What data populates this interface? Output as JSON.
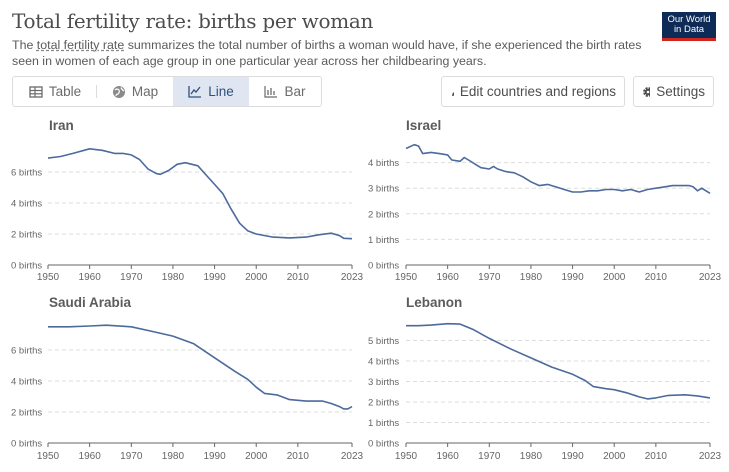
{
  "header": {
    "title": "Total fertility rate: births per woman",
    "subtitle_pre": "The ",
    "subtitle_link": "total fertility rate",
    "subtitle_rest": " summarizes the total number of births a woman would have, if she experienced the birth rates seen in women of each age group in one particular year across her childbearing years.",
    "logo_line1": "Our World",
    "logo_line2": "in Data"
  },
  "toolbar": {
    "tabs": [
      {
        "label": "Table",
        "icon": "table-icon"
      },
      {
        "label": "Map",
        "icon": "globe-icon"
      },
      {
        "label": "Line",
        "icon": "line-chart-icon"
      },
      {
        "label": "Bar",
        "icon": "bar-chart-icon"
      }
    ],
    "active_tab": "Line",
    "edit_label": "Edit countries and regions",
    "settings_label": "Settings"
  },
  "colors": {
    "line": "#4c6a9c",
    "grid": "#dddddd",
    "axis": "#666666",
    "active_tab_bg": "#dfe6f1",
    "logo_bg": "#0d2b56",
    "logo_accent": "#ce261e"
  },
  "chart_data": [
    {
      "type": "line",
      "title": "Iran",
      "ylim": [
        0,
        8
      ],
      "yticks": [
        0,
        2,
        4,
        6
      ],
      "ytick_labels": [
        "0 births",
        "2 births",
        "4 births",
        "6 births"
      ],
      "xticks": [
        1950,
        1960,
        1970,
        1980,
        1990,
        2000,
        2010,
        2023
      ],
      "xlim": [
        1950,
        2023
      ],
      "series": [
        {
          "values": [
            [
              1950,
              6.9
            ],
            [
              1953,
              7.0
            ],
            [
              1956,
              7.2
            ],
            [
              1960,
              7.5
            ],
            [
              1963,
              7.4
            ],
            [
              1966,
              7.2
            ],
            [
              1968,
              7.2
            ],
            [
              1970,
              7.1
            ],
            [
              1972,
              6.8
            ],
            [
              1974,
              6.2
            ],
            [
              1976,
              5.9
            ],
            [
              1977,
              5.85
            ],
            [
              1979,
              6.1
            ],
            [
              1981,
              6.5
            ],
            [
              1983,
              6.6
            ],
            [
              1986,
              6.4
            ],
            [
              1988,
              5.8
            ],
            [
              1990,
              5.2
            ],
            [
              1992,
              4.6
            ],
            [
              1994,
              3.6
            ],
            [
              1996,
              2.7
            ],
            [
              1998,
              2.2
            ],
            [
              2000,
              2.0
            ],
            [
              2004,
              1.8
            ],
            [
              2008,
              1.75
            ],
            [
              2012,
              1.8
            ],
            [
              2015,
              1.95
            ],
            [
              2018,
              2.05
            ],
            [
              2020,
              1.9
            ],
            [
              2021,
              1.72
            ],
            [
              2023,
              1.7
            ]
          ]
        }
      ],
      "grid": true
    },
    {
      "type": "line",
      "title": "Israel",
      "ylim": [
        0,
        5
      ],
      "yticks": [
        0,
        1,
        2,
        3,
        4
      ],
      "ytick_labels": [
        "0 births",
        "1 births",
        "2 births",
        "3 births",
        "4 births"
      ],
      "xticks": [
        1950,
        1960,
        1970,
        1980,
        1990,
        2000,
        2010,
        2023
      ],
      "xlim": [
        1950,
        2023
      ],
      "series": [
        {
          "values": [
            [
              1950,
              4.55
            ],
            [
              1952,
              4.7
            ],
            [
              1953,
              4.65
            ],
            [
              1954,
              4.35
            ],
            [
              1956,
              4.4
            ],
            [
              1958,
              4.35
            ],
            [
              1960,
              4.3
            ],
            [
              1961,
              4.1
            ],
            [
              1963,
              4.05
            ],
            [
              1964,
              4.2
            ],
            [
              1965,
              4.1
            ],
            [
              1967,
              3.9
            ],
            [
              1968,
              3.8
            ],
            [
              1970,
              3.75
            ],
            [
              1971,
              3.85
            ],
            [
              1972,
              3.75
            ],
            [
              1974,
              3.65
            ],
            [
              1976,
              3.6
            ],
            [
              1978,
              3.45
            ],
            [
              1980,
              3.25
            ],
            [
              1982,
              3.1
            ],
            [
              1984,
              3.15
            ],
            [
              1986,
              3.05
            ],
            [
              1988,
              2.95
            ],
            [
              1990,
              2.85
            ],
            [
              1992,
              2.85
            ],
            [
              1994,
              2.9
            ],
            [
              1996,
              2.9
            ],
            [
              1998,
              2.95
            ],
            [
              2000,
              2.95
            ],
            [
              2002,
              2.9
            ],
            [
              2004,
              2.95
            ],
            [
              2006,
              2.85
            ],
            [
              2008,
              2.95
            ],
            [
              2010,
              3.0
            ],
            [
              2012,
              3.05
            ],
            [
              2014,
              3.1
            ],
            [
              2016,
              3.1
            ],
            [
              2018,
              3.1
            ],
            [
              2019,
              3.05
            ],
            [
              2020,
              2.9
            ],
            [
              2021,
              3.0
            ],
            [
              2023,
              2.8
            ]
          ]
        }
      ],
      "grid": true
    },
    {
      "type": "line",
      "title": "Saudi Arabia",
      "ylim": [
        0,
        8
      ],
      "yticks": [
        0,
        2,
        4,
        6
      ],
      "ytick_labels": [
        "0 births",
        "2 births",
        "4 births",
        "6 births"
      ],
      "xticks": [
        1950,
        1960,
        1970,
        1980,
        1990,
        2000,
        2010,
        2023
      ],
      "xlim": [
        1950,
        2023
      ],
      "series": [
        {
          "values": [
            [
              1950,
              7.5
            ],
            [
              1955,
              7.5
            ],
            [
              1960,
              7.55
            ],
            [
              1964,
              7.6
            ],
            [
              1970,
              7.5
            ],
            [
              1975,
              7.2
            ],
            [
              1980,
              6.9
            ],
            [
              1985,
              6.4
            ],
            [
              1990,
              5.5
            ],
            [
              1995,
              4.6
            ],
            [
              1998,
              4.1
            ],
            [
              2000,
              3.6
            ],
            [
              2002,
              3.2
            ],
            [
              2005,
              3.1
            ],
            [
              2008,
              2.8
            ],
            [
              2012,
              2.7
            ],
            [
              2016,
              2.7
            ],
            [
              2018,
              2.55
            ],
            [
              2020,
              2.35
            ],
            [
              2021,
              2.2
            ],
            [
              2022,
              2.2
            ],
            [
              2023,
              2.35
            ]
          ]
        }
      ],
      "grid": true
    },
    {
      "type": "line",
      "title": "Lebanon",
      "ylim": [
        0,
        6
      ],
      "yticks": [
        0,
        1,
        2,
        3,
        4,
        5
      ],
      "ytick_labels": [
        "0 births",
        "1 births",
        "2 births",
        "3 births",
        "4 births",
        "5 births"
      ],
      "xticks": [
        1950,
        1960,
        1970,
        1980,
        1990,
        2000,
        2010,
        2023
      ],
      "xlim": [
        1950,
        2023
      ],
      "series": [
        {
          "values": [
            [
              1950,
              5.72
            ],
            [
              1953,
              5.72
            ],
            [
              1956,
              5.75
            ],
            [
              1960,
              5.82
            ],
            [
              1963,
              5.8
            ],
            [
              1966,
              5.55
            ],
            [
              1970,
              5.1
            ],
            [
              1975,
              4.6
            ],
            [
              1980,
              4.15
            ],
            [
              1985,
              3.7
            ],
            [
              1990,
              3.35
            ],
            [
              1993,
              3.05
            ],
            [
              1995,
              2.75
            ],
            [
              1998,
              2.65
            ],
            [
              2000,
              2.6
            ],
            [
              2003,
              2.45
            ],
            [
              2006,
              2.25
            ],
            [
              2008,
              2.15
            ],
            [
              2010,
              2.2
            ],
            [
              2013,
              2.32
            ],
            [
              2017,
              2.35
            ],
            [
              2020,
              2.3
            ],
            [
              2023,
              2.2
            ]
          ]
        }
      ],
      "grid": true
    }
  ]
}
